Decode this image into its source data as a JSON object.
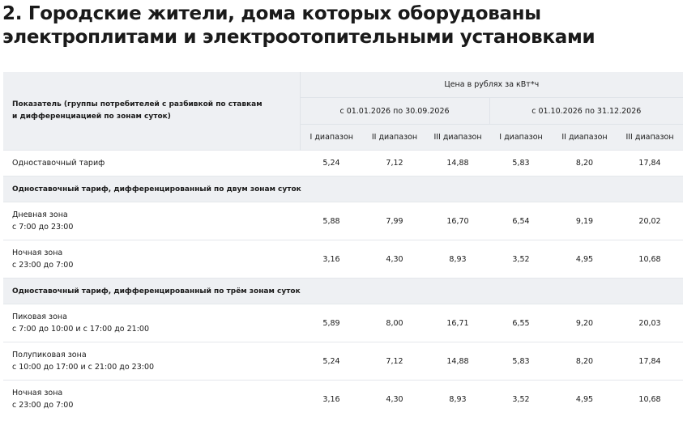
{
  "title": "2. Городские жители, дома которых оборудованы электроплитами и электроотопительными установками",
  "table": {
    "param_header_line1": "Показатель (группы потребителей с разбивкой по ставкам",
    "param_header_line2": "и дифференциацией по зонам суток)",
    "price_header": "Цена в рублях за кВт*ч",
    "period1": "с 01.01.2026 по 30.09.2026",
    "period2": "с 01.10.2026 по 31.12.2026",
    "ranges": [
      "I диапазон",
      "II диапазон",
      "III диапазон",
      "I диапазон",
      "II диапазон",
      "III диапазон"
    ],
    "rows": [
      {
        "type": "single",
        "line1": "Одноставочный тариф",
        "values": [
          "5,24",
          "7,12",
          "14,88",
          "5,83",
          "8,20",
          "17,84"
        ]
      },
      {
        "type": "group",
        "line1": "Одноставочный тариф, дифференцированный по двум зонам суток"
      },
      {
        "type": "double",
        "line1": "Дневная зона",
        "line2": "с 7:00 до 23:00",
        "values": [
          "5,88",
          "7,99",
          "16,70",
          "6,54",
          "9,19",
          "20,02"
        ]
      },
      {
        "type": "double",
        "line1": "Ночная зона",
        "line2": "с 23:00 до 7:00",
        "values": [
          "3,16",
          "4,30",
          "8,93",
          "3,52",
          "4,95",
          "10,68"
        ]
      },
      {
        "type": "group",
        "line1": "Одноставочный тариф, дифференцированный по трём зонам суток"
      },
      {
        "type": "double",
        "line1": "Пиковая зона",
        "line2": "с 7:00 до 10:00 и с 17:00 до 21:00",
        "values": [
          "5,89",
          "8,00",
          "16,71",
          "6,55",
          "9,20",
          "20,03"
        ]
      },
      {
        "type": "double",
        "line1": "Полупиковая зона",
        "line2": "с 10:00 до 17:00 и с 21:00 до 23:00",
        "values": [
          "5,24",
          "7,12",
          "14,88",
          "5,83",
          "8,20",
          "17,84"
        ]
      },
      {
        "type": "double",
        "line1": "Ночная зона",
        "line2": "с 23:00 до 7:00",
        "values": [
          "3,16",
          "4,30",
          "8,93",
          "3,52",
          "4,95",
          "10,68"
        ]
      }
    ]
  }
}
